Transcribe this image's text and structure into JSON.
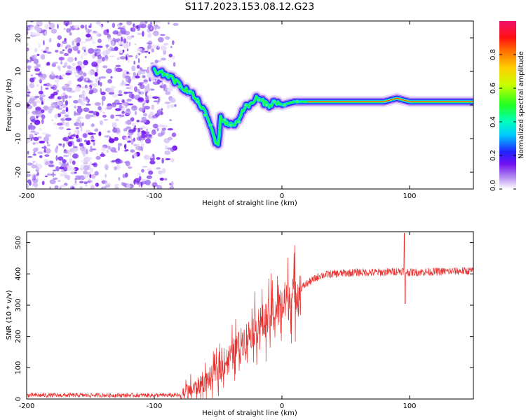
{
  "title": "S117.2023.153.08.12.G23",
  "chart_data": [
    {
      "type": "heatmap",
      "name": "spectrogram",
      "xlabel": "Height of straight line (km)",
      "ylabel": "Frequency (Hz)",
      "xlim": [
        -200,
        150
      ],
      "ylim": [
        -25,
        25
      ],
      "xticks": [
        -200,
        -100,
        0,
        100
      ],
      "yticks": [
        -20,
        -10,
        0,
        10,
        20
      ],
      "colorbar": {
        "label": "Normalized spectral amplitude",
        "range": [
          0,
          1
        ],
        "ticks": [
          "0.0",
          "0.2",
          "0.4",
          "0.6",
          "0.8"
        ]
      },
      "noise_region_x": [
        -200,
        -83
      ],
      "ridge": {
        "x": [
          -100,
          -90,
          -80,
          -70,
          -62,
          -57,
          -53,
          -50,
          -48,
          -45,
          -40,
          -35,
          -30,
          -25,
          -20,
          -15,
          -10,
          -5,
          0,
          10,
          20,
          40,
          60,
          80,
          90,
          100,
          120,
          150
        ],
        "y": [
          10,
          9,
          6,
          3,
          -1,
          -5,
          -10,
          -12,
          -4,
          -5,
          -6,
          -5,
          -1,
          0,
          2,
          1,
          0,
          1,
          0,
          1,
          1,
          1,
          1,
          1,
          2,
          1,
          1,
          1
        ]
      }
    },
    {
      "type": "line",
      "name": "snr",
      "xlabel": "Height of straight line (km)",
      "ylabel": "SNR (10 * v/v)",
      "xlim": [
        -200,
        150
      ],
      "ylim": [
        0,
        535
      ],
      "xticks": [
        -200,
        -100,
        0,
        100
      ],
      "yticks": [
        0,
        100,
        200,
        300,
        400,
        500
      ],
      "color": "#e8302e",
      "trend": {
        "x": [
          -200,
          -80,
          -70,
          -60,
          -50,
          -40,
          -30,
          -20,
          -10,
          0,
          10,
          20,
          30,
          40,
          60,
          80,
          95,
          100,
          150
        ],
        "y": [
          12,
          12,
          30,
          55,
          90,
          140,
          190,
          230,
          260,
          300,
          340,
          370,
          395,
          400,
          405,
          405,
          410,
          405,
          410
        ]
      },
      "spikes": [
        {
          "x": 96,
          "y": 530
        },
        {
          "x": 96.5,
          "y": 305
        }
      ]
    }
  ]
}
